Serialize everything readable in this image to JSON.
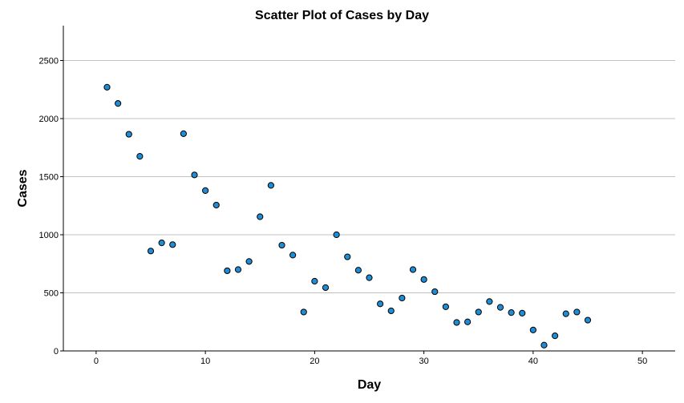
{
  "chart_data": {
    "type": "scatter",
    "title": "Scatter Plot of Cases by Day",
    "xlabel": "Day",
    "ylabel": "Cases",
    "xlim": [
      -3,
      53
    ],
    "ylim": [
      0,
      2800
    ],
    "xticks": [
      0,
      10,
      20,
      30,
      40,
      50
    ],
    "yticks": [
      0,
      500,
      1000,
      1500,
      2000,
      2500
    ],
    "grid": "horizontal",
    "legend": "none",
    "marker_color": "#1f8dd6",
    "marker_edge_color": "#000000",
    "gridline_color": "#c0c0c0",
    "series": [
      {
        "x": [
          1,
          2,
          3,
          4,
          5,
          6,
          7,
          8,
          9,
          10,
          11,
          12,
          13,
          14,
          15,
          16,
          17,
          18,
          19,
          20,
          21,
          22,
          23,
          24,
          25,
          26,
          27,
          28,
          29,
          30,
          31,
          32,
          33,
          34,
          35,
          36,
          37,
          38,
          39,
          40,
          41,
          42,
          43,
          44,
          45
        ],
        "y": [
          2270,
          2130,
          1865,
          1675,
          860,
          930,
          915,
          1870,
          1515,
          1380,
          1255,
          690,
          700,
          770,
          1155,
          1425,
          910,
          825,
          335,
          600,
          545,
          1000,
          810,
          695,
          630,
          405,
          345,
          455,
          700,
          615,
          510,
          380,
          245,
          250,
          335,
          425,
          375,
          330,
          325,
          180,
          50,
          130,
          320,
          335,
          265
        ]
      }
    ]
  }
}
